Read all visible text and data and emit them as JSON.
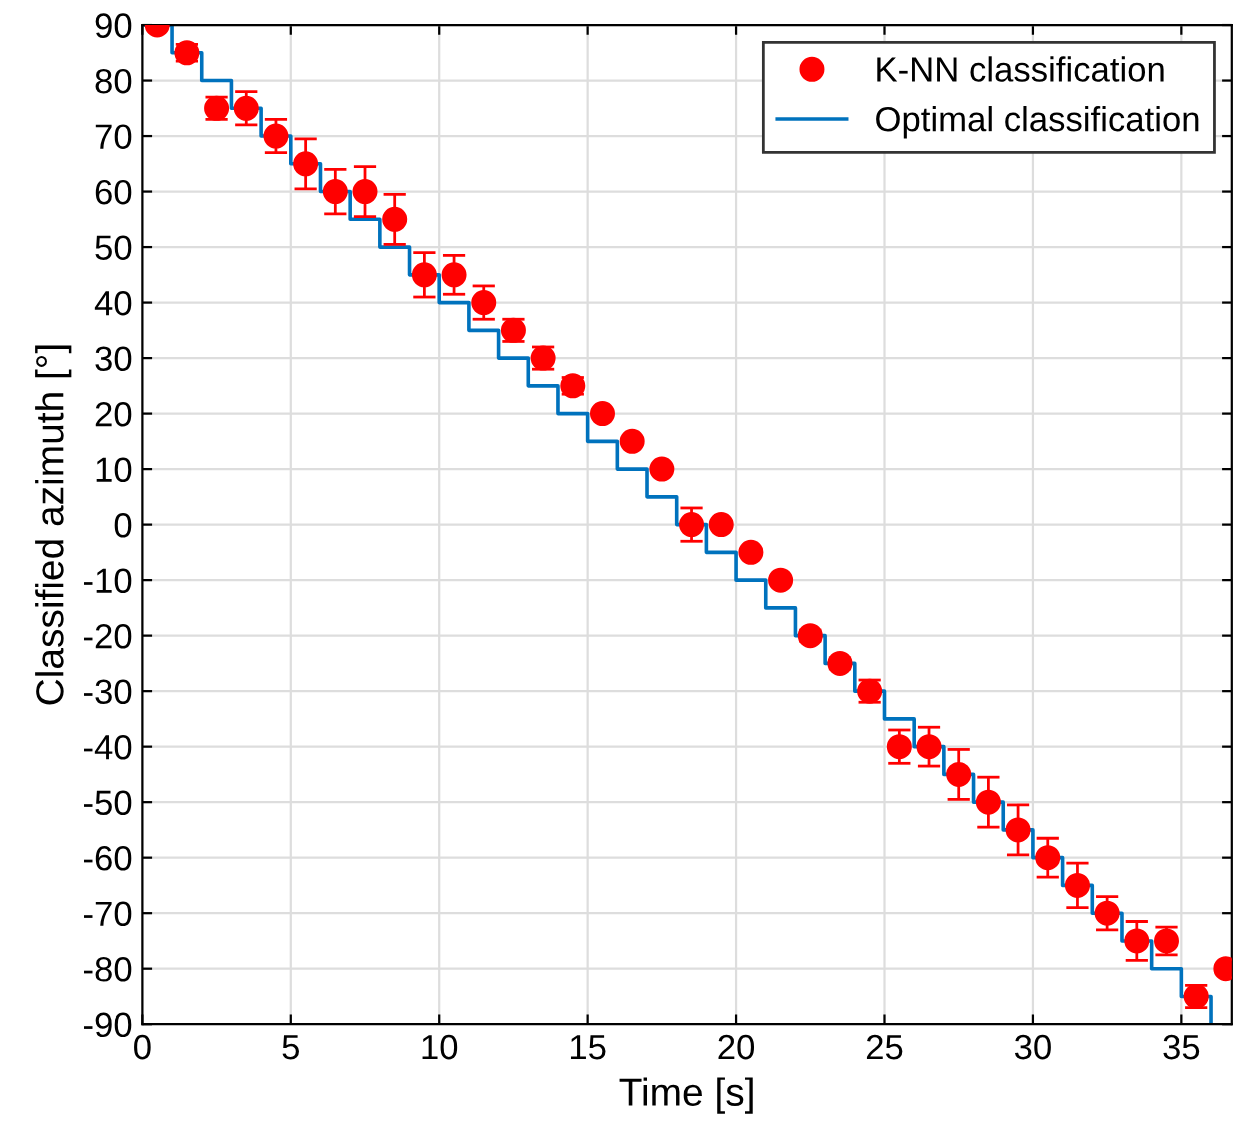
{
  "chart_data": {
    "type": "scatter",
    "xlabel": "Time [s]",
    "ylabel": "Classified azimuth [°]",
    "xlim": [
      0,
      36.7
    ],
    "ylim": [
      -90,
      90
    ],
    "xticks": [
      0,
      5,
      10,
      15,
      20,
      25,
      30,
      35
    ],
    "yticks": [
      -90,
      -80,
      -70,
      -60,
      -50,
      -40,
      -30,
      -20,
      -10,
      0,
      10,
      20,
      30,
      40,
      50,
      60,
      70,
      80,
      90
    ],
    "grid": true,
    "legend": "top right",
    "series": [
      {
        "name": "K-NN classification",
        "marker": "circle",
        "color": "#ff0000",
        "x": [
          0.5,
          1.5,
          2.5,
          3.5,
          4.5,
          5.5,
          6.5,
          7.5,
          8.5,
          9.5,
          10.5,
          11.5,
          12.5,
          13.5,
          14.5,
          15.5,
          16.5,
          17.5,
          18.5,
          19.5,
          20.5,
          21.5,
          22.5,
          23.5,
          24.5,
          25.5,
          26.5,
          27.5,
          28.5,
          29.5,
          30.5,
          31.5,
          32.5,
          33.5,
          34.5,
          35.5,
          36.5
        ],
        "values": [
          90,
          85,
          75,
          75,
          70,
          65,
          60,
          60,
          55,
          45,
          45,
          40,
          35,
          30,
          25,
          20,
          15,
          10,
          0,
          0,
          -5,
          -10,
          -20,
          -25,
          -30,
          -40,
          -40,
          -45,
          -50,
          -55,
          -60,
          -65,
          -70,
          -75,
          -75,
          -85,
          -80
        ],
        "errors": [
          null,
          1.5,
          2,
          3,
          3,
          4.5,
          4,
          4.5,
          4.5,
          4,
          3.5,
          3,
          2,
          2,
          1.5,
          null,
          null,
          null,
          3,
          null,
          null,
          null,
          1,
          1,
          2,
          3,
          3.5,
          4.5,
          4.5,
          4.5,
          3.5,
          4,
          3,
          3.5,
          2.5,
          2,
          null
        ]
      },
      {
        "name": "Optimal classification",
        "type": "step",
        "color": "#0072bd",
        "x": [
          0,
          1,
          2,
          3,
          4,
          5,
          6,
          7,
          8,
          9,
          10,
          11,
          12,
          13,
          14,
          15,
          16,
          17,
          18,
          19,
          20,
          21,
          22,
          23,
          24,
          25,
          26,
          27,
          28,
          29,
          30,
          31,
          32,
          33,
          34,
          35,
          36
        ],
        "values": [
          90,
          85,
          80,
          75,
          70,
          65,
          60,
          55,
          50,
          45,
          40,
          35,
          30,
          25,
          20,
          15,
          10,
          5,
          0,
          -5,
          -10,
          -15,
          -20,
          -25,
          -30,
          -35,
          -40,
          -45,
          -50,
          -55,
          -60,
          -65,
          -70,
          -75,
          -80,
          -85,
          -90
        ]
      }
    ]
  }
}
